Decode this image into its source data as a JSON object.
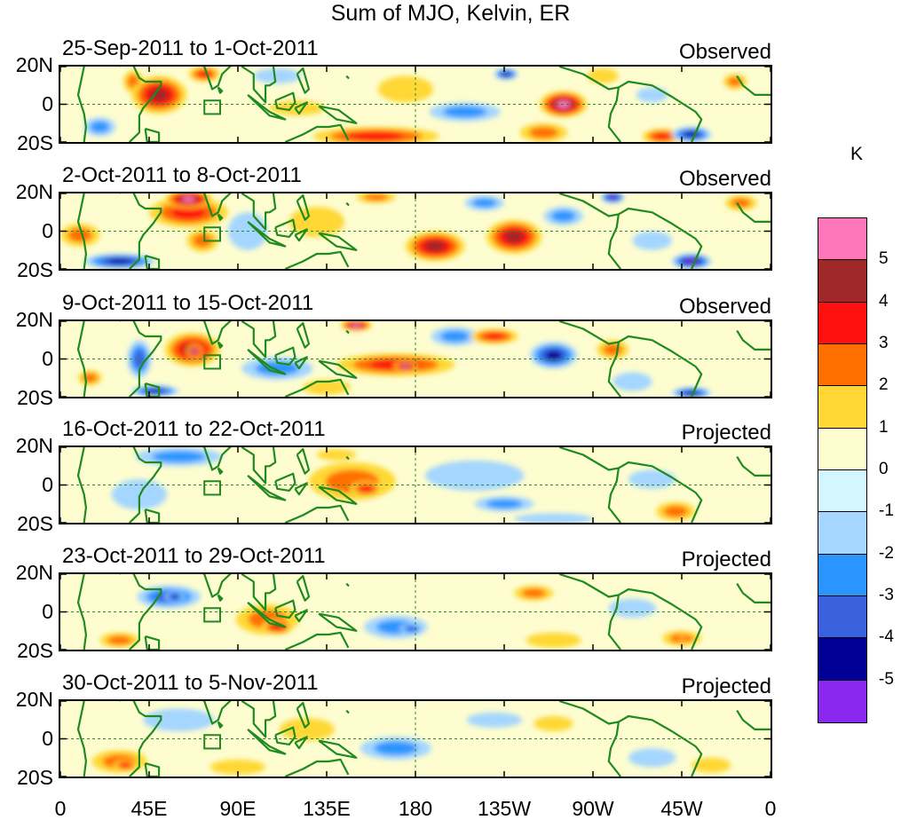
{
  "title": "Sum of MJO, Kelvin, ER",
  "y_axis": {
    "ticks": [
      "20N",
      "0",
      "20S"
    ]
  },
  "x_axis": {
    "ticks": [
      "0",
      "45E",
      "90E",
      "135E",
      "180",
      "135W",
      "90W",
      "45W",
      "0"
    ]
  },
  "colorbar": {
    "unit": "K",
    "labels": [
      "5",
      "4",
      "3",
      "2",
      "1",
      "0",
      "-1",
      "-2",
      "-3",
      "-4",
      "-5"
    ],
    "colors": [
      "#ff77bb",
      "#a02828",
      "#ff1010",
      "#ff7000",
      "#ffd835",
      "#fdfdd0",
      "#d4f6ff",
      "#a4d6ff",
      "#2b95ff",
      "#3a62de",
      "#000096",
      "#8a28f0"
    ]
  },
  "panels": [
    {
      "period": "25-Sep-2011 to 1-Oct-2011",
      "status": "Observed",
      "blobs": [
        {
          "lon": 50,
          "lat": 5,
          "rlon": 14,
          "rlat": 10,
          "v": 4
        },
        {
          "lon": 73,
          "lat": 16,
          "rlon": 8,
          "rlat": 4,
          "v": 3
        },
        {
          "lon": 37,
          "lat": 12,
          "rlon": 5,
          "rlat": 6,
          "v": 2
        },
        {
          "lon": 110,
          "lat": 15,
          "rlon": 12,
          "rlat": 4,
          "v": -1
        },
        {
          "lon": 120,
          "lat": -2,
          "rlon": 14,
          "rlat": 4,
          "v": 1
        },
        {
          "lon": 160,
          "lat": -17,
          "rlon": 32,
          "rlat": 5,
          "v": 3
        },
        {
          "lon": 175,
          "lat": 8,
          "rlon": 14,
          "rlat": 7,
          "v": 1
        },
        {
          "lon": 205,
          "lat": -4,
          "rlon": 18,
          "rlat": 5,
          "v": -2
        },
        {
          "lon": 226,
          "lat": 16,
          "rlon": 6,
          "rlat": 3,
          "v": -4
        },
        {
          "lon": 255,
          "lat": 0,
          "rlon": 12,
          "rlat": 7,
          "v": 5
        },
        {
          "lon": 245,
          "lat": -15,
          "rlon": 12,
          "rlat": 5,
          "v": 2
        },
        {
          "lon": 275,
          "lat": 15,
          "rlon": 8,
          "rlat": 4,
          "v": 1
        },
        {
          "lon": 300,
          "lat": 5,
          "rlon": 8,
          "rlat": 4,
          "v": -1
        },
        {
          "lon": 320,
          "lat": -16,
          "rlon": 10,
          "rlat": 4,
          "v": -4
        },
        {
          "lon": 305,
          "lat": -17,
          "rlon": 10,
          "rlat": 4,
          "v": 3
        },
        {
          "lon": 20,
          "lat": -12,
          "rlon": 8,
          "rlat": 5,
          "v": -2
        },
        {
          "lon": 342,
          "lat": 12,
          "rlon": 6,
          "rlat": 4,
          "v": 2
        }
      ]
    },
    {
      "period": "2-Oct-2011 to 8-Oct-2011",
      "status": "Observed",
      "blobs": [
        {
          "lon": 65,
          "lat": 17,
          "rlon": 12,
          "rlat": 5,
          "v": 5
        },
        {
          "lon": 65,
          "lat": 10,
          "rlon": 20,
          "rlat": 8,
          "v": 3
        },
        {
          "lon": 72,
          "lat": -5,
          "rlon": 8,
          "rlat": 6,
          "v": 2
        },
        {
          "lon": 30,
          "lat": -16,
          "rlon": 18,
          "rlat": 4,
          "v": -4
        },
        {
          "lon": 95,
          "lat": 0,
          "rlon": 10,
          "rlat": 10,
          "v": -1
        },
        {
          "lon": 130,
          "lat": 5,
          "rlon": 14,
          "rlat": 8,
          "v": 1
        },
        {
          "lon": 190,
          "lat": -8,
          "rlon": 15,
          "rlat": 8,
          "v": 4
        },
        {
          "lon": 230,
          "lat": -3,
          "rlon": 14,
          "rlat": 9,
          "v": 4
        },
        {
          "lon": 215,
          "lat": 15,
          "rlon": 10,
          "rlat": 4,
          "v": -2
        },
        {
          "lon": 255,
          "lat": 8,
          "rlon": 10,
          "rlat": 5,
          "v": -2
        },
        {
          "lon": 280,
          "lat": 18,
          "rlon": 6,
          "rlat": 3,
          "v": -5
        },
        {
          "lon": 300,
          "lat": -5,
          "rlon": 10,
          "rlat": 5,
          "v": -1
        },
        {
          "lon": 320,
          "lat": -16,
          "rlon": 10,
          "rlat": 4,
          "v": -5
        },
        {
          "lon": 10,
          "lat": -2,
          "rlon": 10,
          "rlat": 6,
          "v": 2
        },
        {
          "lon": 160,
          "lat": 18,
          "rlon": 10,
          "rlat": 3,
          "v": 2
        },
        {
          "lon": 345,
          "lat": 15,
          "rlon": 8,
          "rlat": 4,
          "v": 2
        }
      ]
    },
    {
      "period": "9-Oct-2011 to 15-Oct-2011",
      "status": "Observed",
      "blobs": [
        {
          "lon": 67,
          "lat": 5,
          "rlon": 14,
          "rlat": 9,
          "v": 4
        },
        {
          "lon": 68,
          "lat": 4,
          "rlon": 4,
          "rlat": 4,
          "v": 5
        },
        {
          "lon": 40,
          "lat": 0,
          "rlon": 6,
          "rlat": 10,
          "v": -3
        },
        {
          "lon": 48,
          "lat": -17,
          "rlon": 12,
          "rlat": 3,
          "v": -4
        },
        {
          "lon": 15,
          "lat": -10,
          "rlon": 6,
          "rlat": 4,
          "v": 2
        },
        {
          "lon": 110,
          "lat": -5,
          "rlon": 18,
          "rlat": 6,
          "v": -2
        },
        {
          "lon": 170,
          "lat": -3,
          "rlon": 30,
          "rlat": 6,
          "v": 3
        },
        {
          "lon": 175,
          "lat": -4,
          "rlon": 6,
          "rlat": 3,
          "v": 5
        },
        {
          "lon": 150,
          "lat": 18,
          "rlon": 8,
          "rlat": 3,
          "v": 5
        },
        {
          "lon": 220,
          "lat": 12,
          "rlon": 12,
          "rlat": 4,
          "v": 3
        },
        {
          "lon": 250,
          "lat": 2,
          "rlon": 12,
          "rlat": 7,
          "v": -4
        },
        {
          "lon": 200,
          "lat": 12,
          "rlon": 12,
          "rlat": 5,
          "v": -2
        },
        {
          "lon": 280,
          "lat": 5,
          "rlon": 8,
          "rlat": 5,
          "v": 2
        },
        {
          "lon": 320,
          "lat": -18,
          "rlon": 10,
          "rlat": 3,
          "v": -4
        },
        {
          "lon": 290,
          "lat": -12,
          "rlon": 10,
          "rlat": 5,
          "v": -1
        },
        {
          "lon": 135,
          "lat": -15,
          "rlon": 12,
          "rlat": 4,
          "v": 1
        }
      ]
    },
    {
      "period": "16-Oct-2011 to 22-Oct-2011",
      "status": "Projected",
      "blobs": [
        {
          "lon": 60,
          "lat": 15,
          "rlon": 22,
          "rlat": 5,
          "v": -2
        },
        {
          "lon": 40,
          "lat": -5,
          "rlon": 14,
          "rlat": 8,
          "v": -1
        },
        {
          "lon": 148,
          "lat": 2,
          "rlon": 22,
          "rlat": 10,
          "v": 2
        },
        {
          "lon": 155,
          "lat": -2,
          "rlon": 8,
          "rlat": 4,
          "v": 3
        },
        {
          "lon": 140,
          "lat": 16,
          "rlon": 10,
          "rlat": 3,
          "v": 1
        },
        {
          "lon": 210,
          "lat": 5,
          "rlon": 25,
          "rlat": 8,
          "v": -1
        },
        {
          "lon": 225,
          "lat": -10,
          "rlon": 15,
          "rlat": 4,
          "v": -2
        },
        {
          "lon": 300,
          "lat": 3,
          "rlon": 12,
          "rlat": 5,
          "v": -1
        },
        {
          "lon": 312,
          "lat": -14,
          "rlon": 10,
          "rlat": 5,
          "v": 2
        },
        {
          "lon": 250,
          "lat": -18,
          "rlon": 20,
          "rlat": 3,
          "v": -1
        }
      ]
    },
    {
      "period": "23-Oct-2011 to 29-Oct-2011",
      "status": "Projected",
      "blobs": [
        {
          "lon": 55,
          "lat": 8,
          "rlon": 16,
          "rlat": 6,
          "v": -3
        },
        {
          "lon": 58,
          "lat": 8,
          "rlon": 5,
          "rlat": 3,
          "v": -4
        },
        {
          "lon": 30,
          "lat": -15,
          "rlon": 10,
          "rlat": 4,
          "v": 2
        },
        {
          "lon": 105,
          "lat": -4,
          "rlon": 16,
          "rlat": 8,
          "v": 2
        },
        {
          "lon": 110,
          "lat": -8,
          "rlon": 8,
          "rlat": 4,
          "v": 3
        },
        {
          "lon": 170,
          "lat": -8,
          "rlon": 16,
          "rlat": 6,
          "v": -2
        },
        {
          "lon": 178,
          "lat": -9,
          "rlon": 6,
          "rlat": 3,
          "v": -3
        },
        {
          "lon": 240,
          "lat": 10,
          "rlon": 10,
          "rlat": 4,
          "v": 2
        },
        {
          "lon": 250,
          "lat": -15,
          "rlon": 14,
          "rlat": 4,
          "v": 1
        },
        {
          "lon": 315,
          "lat": -14,
          "rlon": 10,
          "rlat": 4,
          "v": 2
        },
        {
          "lon": 318,
          "lat": -14,
          "rlon": 4,
          "rlat": 2,
          "v": 3
        },
        {
          "lon": 290,
          "lat": 2,
          "rlon": 12,
          "rlat": 5,
          "v": -1
        }
      ]
    },
    {
      "period": "30-Oct-2011 to 5-Nov-2011",
      "status": "Projected",
      "blobs": [
        {
          "lon": 30,
          "lat": -12,
          "rlon": 14,
          "rlat": 6,
          "v": 2
        },
        {
          "lon": 33,
          "lat": -14,
          "rlon": 6,
          "rlat": 3,
          "v": 3
        },
        {
          "lon": 60,
          "lat": 10,
          "rlon": 18,
          "rlat": 6,
          "v": -1
        },
        {
          "lon": 170,
          "lat": -5,
          "rlon": 18,
          "rlat": 6,
          "v": -2
        },
        {
          "lon": 125,
          "lat": 5,
          "rlon": 14,
          "rlat": 6,
          "v": 1
        },
        {
          "lon": 220,
          "lat": 10,
          "rlon": 14,
          "rlat": 4,
          "v": -1
        },
        {
          "lon": 250,
          "lat": 8,
          "rlon": 10,
          "rlat": 4,
          "v": 1
        },
        {
          "lon": 300,
          "lat": -10,
          "rlon": 12,
          "rlat": 5,
          "v": -1
        },
        {
          "lon": 330,
          "lat": -14,
          "rlon": 10,
          "rlat": 4,
          "v": 1
        },
        {
          "lon": 90,
          "lat": -15,
          "rlon": 14,
          "rlat": 4,
          "v": 1
        }
      ]
    }
  ]
}
